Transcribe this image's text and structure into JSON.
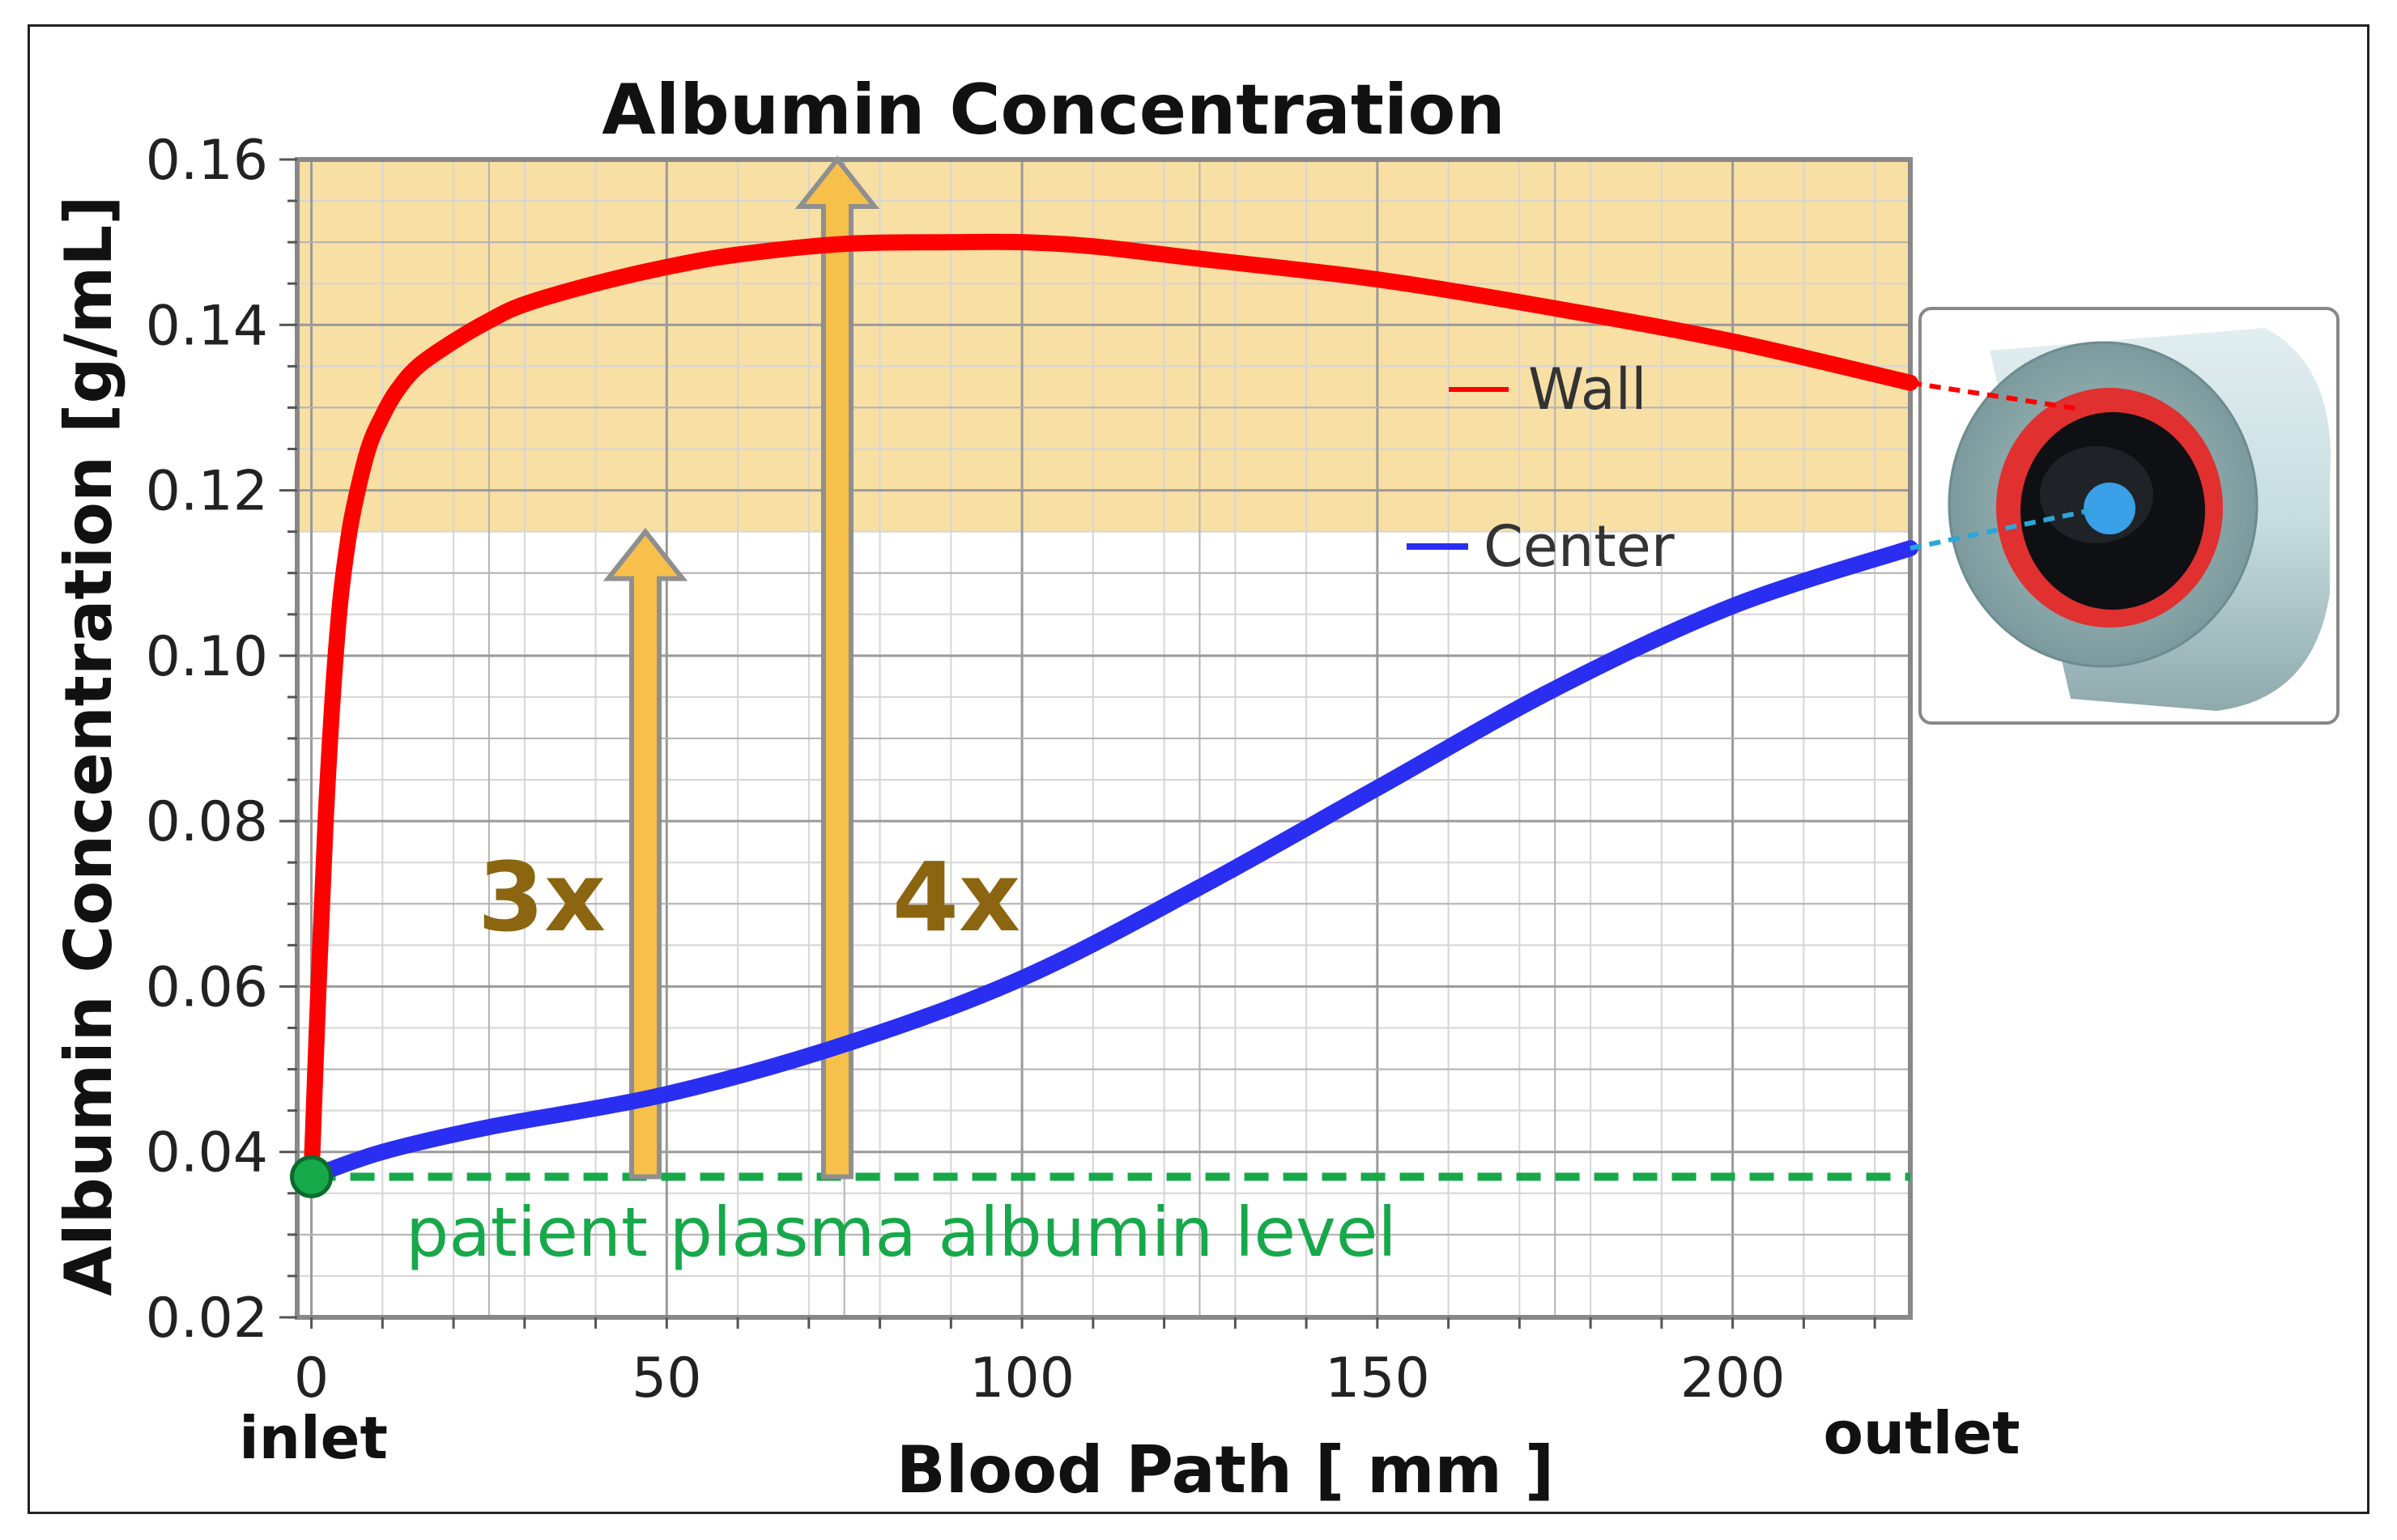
{
  "chart_data": {
    "type": "line",
    "title": "Albumin Concentration",
    "xlabel": "Blood Path [ mm ]",
    "ylabel": "Albumin Concentration [g/mL]",
    "xlim": [
      -2,
      225
    ],
    "ylim": [
      0.02,
      0.16
    ],
    "x_ticks": [
      {
        "value": 0,
        "label": "0"
      },
      {
        "value": 50,
        "label": "50"
      },
      {
        "value": 100,
        "label": "100"
      },
      {
        "value": 150,
        "label": "150"
      },
      {
        "value": 200,
        "label": "200"
      }
    ],
    "y_ticks": [
      {
        "value": 0.02,
        "label": "0.02"
      },
      {
        "value": 0.04,
        "label": "0.04"
      },
      {
        "value": 0.06,
        "label": "0.06"
      },
      {
        "value": 0.08,
        "label": "0.08"
      },
      {
        "value": 0.1,
        "label": "0.10"
      },
      {
        "value": 0.12,
        "label": "0.12"
      },
      {
        "value": 0.14,
        "label": "0.14"
      },
      {
        "value": 0.16,
        "label": "0.16"
      }
    ],
    "grid": true,
    "series": [
      {
        "name": "Wall",
        "color": "#ff0000",
        "x": [
          0,
          1,
          2,
          3,
          4,
          5,
          6,
          8,
          10,
          12,
          15,
          20,
          25,
          30,
          40,
          50,
          60,
          75,
          90,
          100,
          110,
          125,
          150,
          175,
          200,
          225
        ],
        "y": [
          0.037,
          0.06,
          0.08,
          0.095,
          0.106,
          0.113,
          0.118,
          0.125,
          0.129,
          0.132,
          0.135,
          0.138,
          0.1405,
          0.1425,
          0.145,
          0.147,
          0.1485,
          0.1498,
          0.15,
          0.15,
          0.1495,
          0.148,
          0.1455,
          0.142,
          0.138,
          0.133
        ]
      },
      {
        "name": "Center",
        "color": "#2a2ef0",
        "x": [
          0,
          10,
          25,
          50,
          75,
          100,
          125,
          150,
          175,
          200,
          225
        ],
        "y": [
          0.037,
          0.04,
          0.043,
          0.047,
          0.053,
          0.061,
          0.072,
          0.084,
          0.096,
          0.106,
          0.113
        ]
      }
    ],
    "reference_line": {
      "label": "patient plasma albumin level",
      "y": 0.037,
      "color": "#17a84a"
    },
    "highlight_band": {
      "y_range": [
        0.115,
        0.16
      ],
      "color": "#f8dfa4"
    },
    "arrows": [
      {
        "x": 47,
        "y_from": 0.037,
        "y_to": 0.115,
        "label": "3x"
      },
      {
        "x": 74,
        "y_from": 0.037,
        "y_to": 0.16,
        "label": "4x"
      }
    ],
    "annotations": {
      "inlet": "inlet",
      "outlet": "outlet"
    }
  },
  "inset": {
    "description_icon": "tube-cross-section-icon",
    "wall_color": "#e03030",
    "center_color": "#3aa0e8"
  }
}
